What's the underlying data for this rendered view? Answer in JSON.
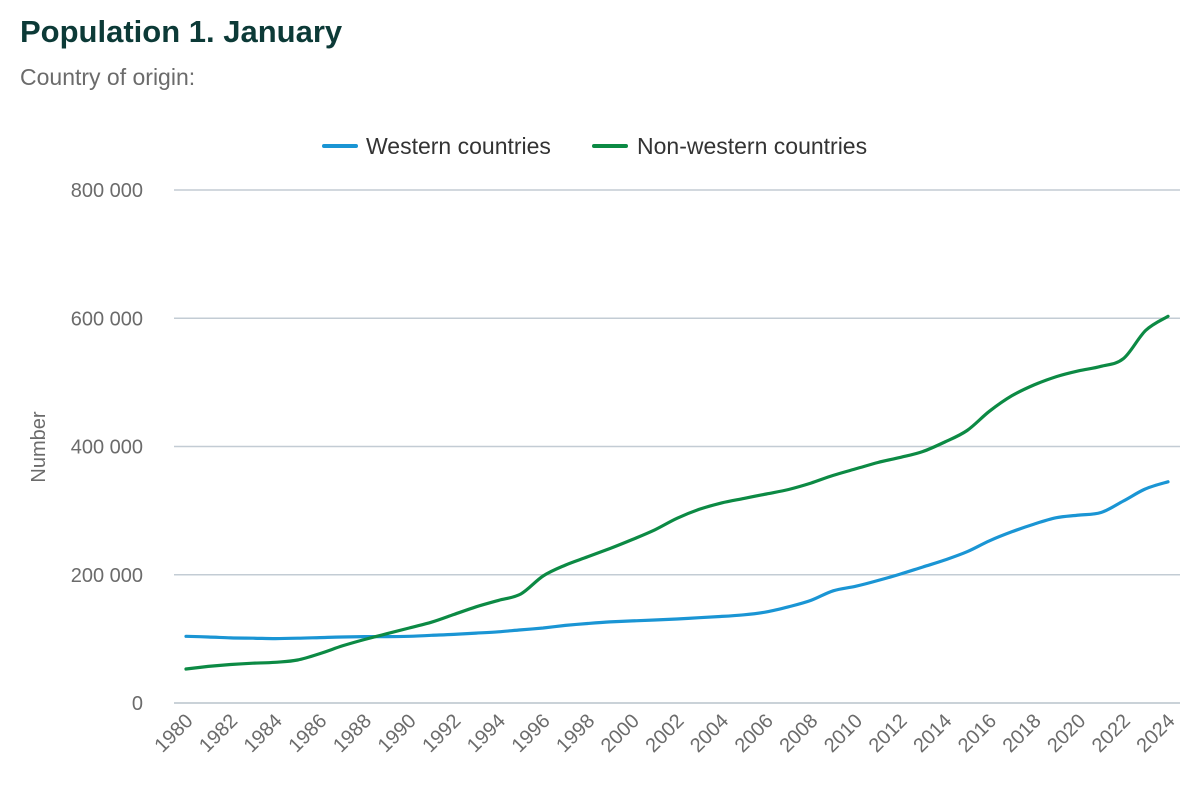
{
  "header": {
    "title": "Population 1. January",
    "subtitle": "Country of origin:"
  },
  "chart_data": {
    "type": "line",
    "title": "Population 1. January",
    "subtitle": "Country of origin:",
    "xlabel": "",
    "ylabel": "Number",
    "ylim": [
      0,
      800000
    ],
    "yticks": [
      0,
      200000,
      400000,
      600000,
      800000
    ],
    "ytick_labels": [
      "0",
      "200 000",
      "400 000",
      "600 000",
      "800 000"
    ],
    "grid": true,
    "legend_position": "top-center",
    "x": [
      1980,
      1981,
      1982,
      1983,
      1984,
      1985,
      1986,
      1987,
      1988,
      1989,
      1990,
      1991,
      1992,
      1993,
      1994,
      1995,
      1996,
      1997,
      1998,
      1999,
      2000,
      2001,
      2002,
      2003,
      2004,
      2005,
      2006,
      2007,
      2008,
      2009,
      2010,
      2011,
      2012,
      2013,
      2014,
      2015,
      2016,
      2017,
      2018,
      2019,
      2020,
      2021,
      2022,
      2023,
      2024
    ],
    "xtick_labels": [
      "1980",
      "1982",
      "1984",
      "1986",
      "1988",
      "1990",
      "1992",
      "1994",
      "1996",
      "1998",
      "2000",
      "2002",
      "2004",
      "2006",
      "2008",
      "2010",
      "2012",
      "2014",
      "2016",
      "2018",
      "2020",
      "2022",
      "2024"
    ],
    "series": [
      {
        "name": "Western countries",
        "color": "#1a95d4",
        "values": [
          104000,
          103000,
          101500,
          101000,
          100500,
          101000,
          102000,
          103000,
          103500,
          103500,
          104000,
          105500,
          107000,
          109000,
          111000,
          114000,
          117000,
          121000,
          124000,
          126500,
          128000,
          129500,
          131000,
          133000,
          135000,
          137500,
          142000,
          150000,
          160000,
          175000,
          182000,
          191000,
          201000,
          212000,
          223000,
          236000,
          253000,
          267000,
          279000,
          289000,
          293000,
          297000,
          315000,
          334000,
          345000
        ]
      },
      {
        "name": "Non-western countries",
        "color": "#0c8a44",
        "values": [
          53000,
          57000,
          60000,
          62000,
          63500,
          67000,
          77000,
          89000,
          99000,
          108000,
          117000,
          126000,
          138000,
          150000,
          160000,
          170000,
          198000,
          215000,
          228000,
          241000,
          255000,
          270000,
          288000,
          302000,
          312000,
          319000,
          326000,
          333000,
          343000,
          355000,
          365000,
          375000,
          383000,
          392000,
          407000,
          425000,
          455000,
          479000,
          496000,
          509000,
          518000,
          525000,
          537000,
          581000,
          603000
        ]
      }
    ]
  }
}
